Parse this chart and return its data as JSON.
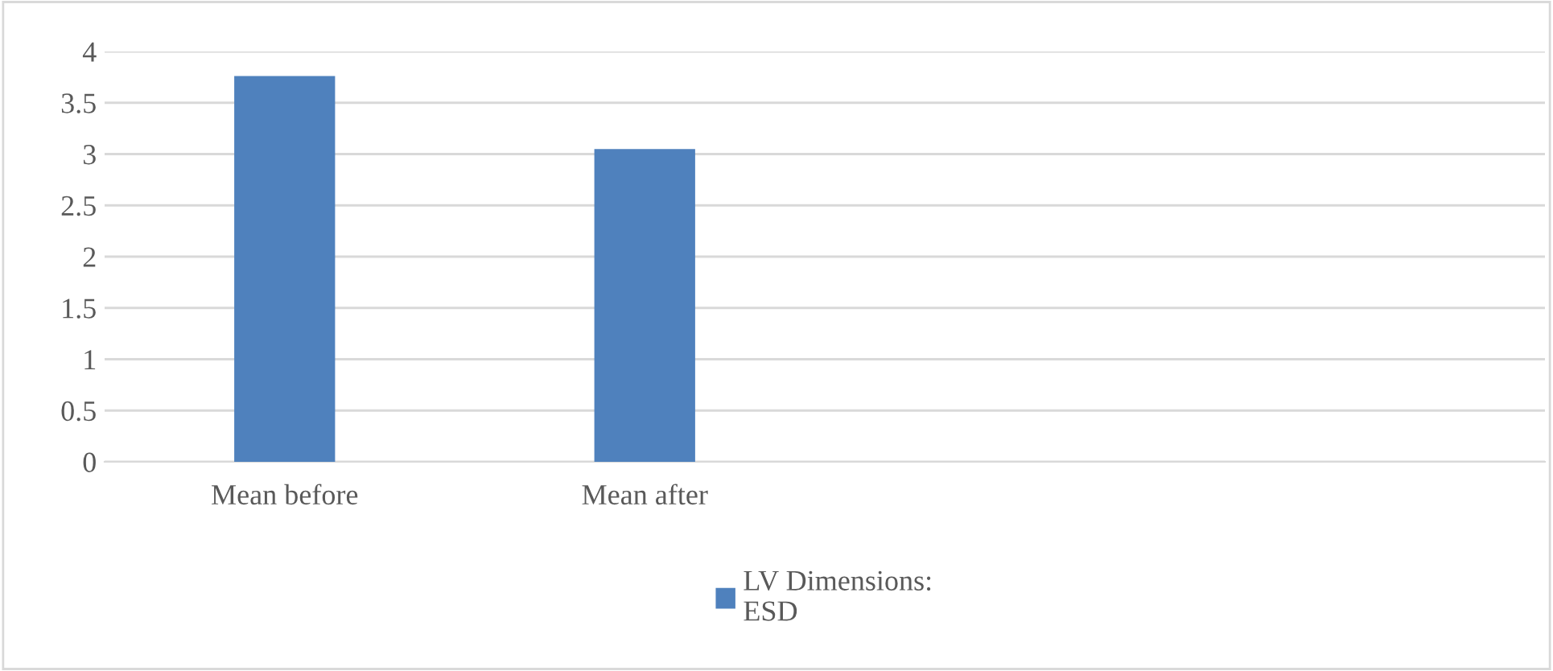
{
  "chart_data": {
    "type": "bar",
    "categories": [
      "Mean before",
      "Mean after",
      null,
      null
    ],
    "series": [
      {
        "name": "LV Dimensions:\nESD",
        "color": "#4f81bd",
        "values": [
          3.76,
          3.05,
          null,
          null
        ]
      }
    ],
    "ylim": [
      0,
      4
    ],
    "yticks": [
      0,
      0.5,
      1,
      1.5,
      2,
      2.5,
      3,
      3.5,
      4
    ],
    "grid": "y",
    "legend": "bottom"
  }
}
